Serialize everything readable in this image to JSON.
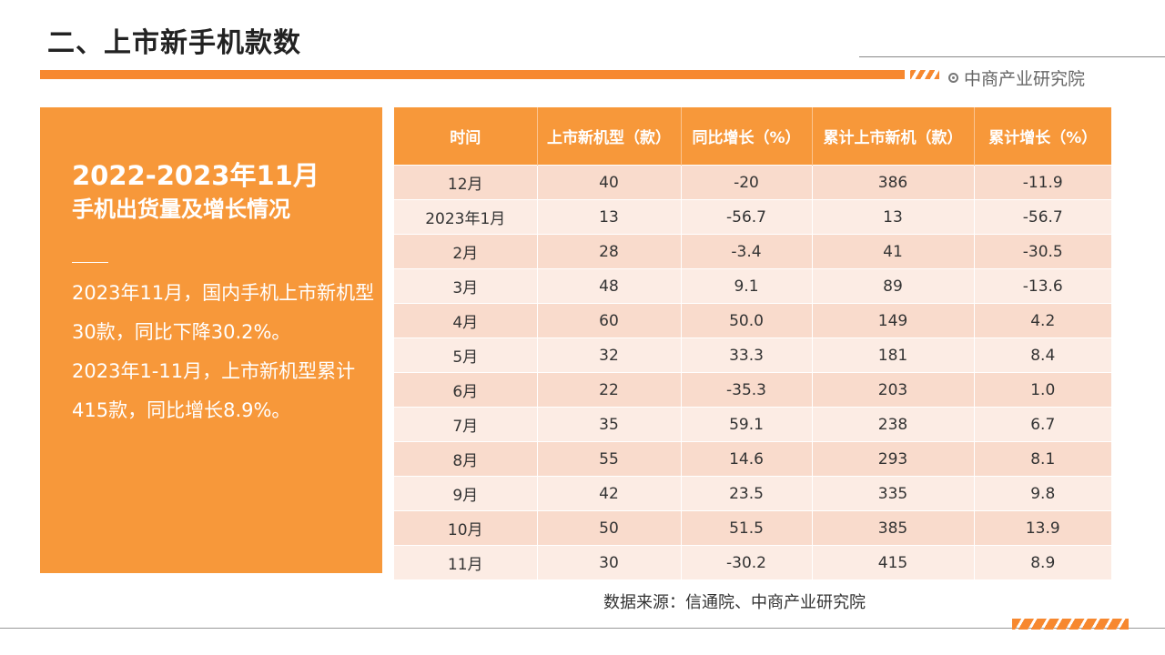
{
  "header": {
    "title": "二、上市新手机款数",
    "logo_text": "中商产业研究院"
  },
  "side_panel": {
    "title": "2022-2023年11月",
    "subtitle": "手机出货量及增长情况",
    "body": [
      "2023年11月，国内手机上市新机型30款，同比下降30.2%。",
      "2023年1-11月，上市新机型累计415款，同比增长8.9%。"
    ]
  },
  "table": {
    "headers": [
      "时间",
      "上市新机型（款）",
      "同比增长（%）",
      "累计上市新机（款）",
      "累计增长（%）"
    ],
    "rows": [
      [
        "12月",
        "40",
        "-20",
        "386",
        "-11.9"
      ],
      [
        "2023年1月",
        "13",
        "-56.7",
        "13",
        "-56.7"
      ],
      [
        "2月",
        "28",
        "-3.4",
        "41",
        "-30.5"
      ],
      [
        "3月",
        "48",
        "9.1",
        "89",
        "-13.6"
      ],
      [
        "4月",
        "60",
        "50.0",
        "149",
        "4.2"
      ],
      [
        "5月",
        "32",
        "33.3",
        "181",
        "8.4"
      ],
      [
        "6月",
        "22",
        "-35.3",
        "203",
        "1.0"
      ],
      [
        "7月",
        "35",
        "59.1",
        "238",
        "6.7"
      ],
      [
        "8月",
        "55",
        "14.6",
        "293",
        "8.1"
      ],
      [
        "9月",
        "42",
        "23.5",
        "335",
        "9.8"
      ],
      [
        "10月",
        "50",
        "51.5",
        "385",
        "13.9"
      ],
      [
        "11月",
        "30",
        "-30.2",
        "415",
        "8.9"
      ]
    ]
  },
  "footer": {
    "source": "数据来源：信通院、中商产业研究院"
  },
  "colors": {
    "accent": "#f7983a",
    "row_odd": "#f9dbcc",
    "row_even": "#fcece4"
  }
}
